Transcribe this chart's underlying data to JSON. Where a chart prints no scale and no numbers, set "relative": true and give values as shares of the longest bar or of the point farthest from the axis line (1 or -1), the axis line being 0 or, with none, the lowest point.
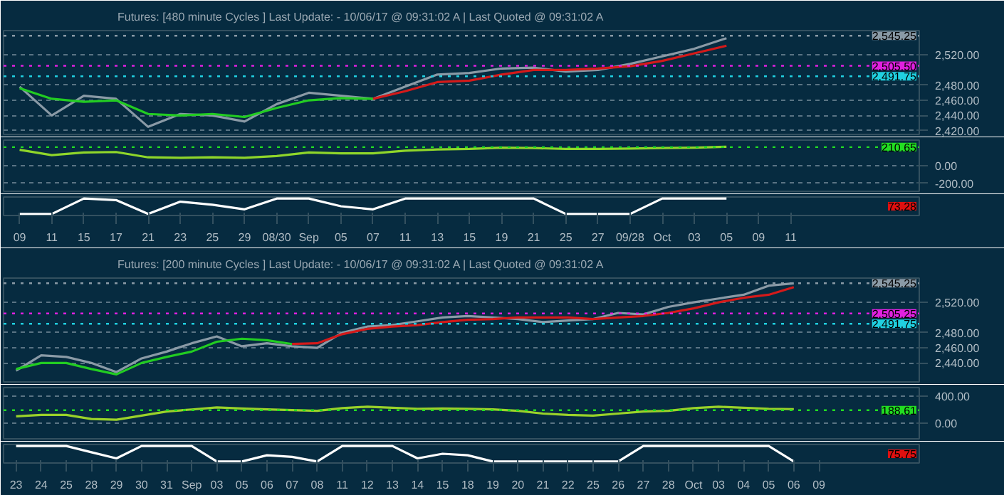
{
  "chart_data": [
    {
      "type": "line",
      "title": "Futures: [480 minute Cycles ] Last Update:  - 10/06/17 @ 09:31:02 A | Last Quoted @ 09:31:02 A",
      "categories": [
        null,
        null,
        null,
        null,
        null,
        null,
        null,
        null,
        null,
        null,
        null,
        null,
        null,
        null,
        null,
        null,
        null,
        null,
        null,
        null,
        null,
        null,
        null,
        null,
        null
      ],
      "series": [
        {
          "color": "#8a9aa6",
          "values": [
            2478,
            2440,
            2466,
            2462,
            2425,
            2442,
            2440,
            2432,
            2455,
            2470,
            2466,
            2462,
            2478,
            2494,
            2496,
            2502,
            2503,
            2498,
            2500,
            2508,
            2518,
            2528,
            2542,
            null,
            null
          ]
        },
        {
          "color": "#22cc22",
          "values": [
            2476,
            2462,
            2458,
            2460,
            2442,
            2440,
            2442,
            2438,
            2450,
            2460,
            2463,
            2462,
            null,
            null,
            null,
            null,
            null,
            null,
            null,
            null,
            null,
            null,
            null,
            null,
            null
          ]
        },
        {
          "color": "#d41a1a",
          "values": [
            null,
            null,
            null,
            null,
            null,
            null,
            null,
            null,
            null,
            null,
            null,
            2462,
            2472,
            2484,
            2486,
            2494,
            2500,
            2500,
            2502,
            2505,
            2512,
            2522,
            2532,
            null,
            null
          ]
        }
      ],
      "ylim": [
        2415,
        2552
      ],
      "yticks": [
        {
          "value": 2420,
          "label": "2,420.00"
        },
        {
          "value": 2440,
          "label": "2,440.00"
        },
        {
          "value": 2460,
          "label": "2,460.00"
        },
        {
          "value": 2480,
          "label": "2,480.00"
        },
        {
          "value": 2520,
          "label": "2,520.00"
        }
      ],
      "ref_lines": [
        {
          "axis": "y",
          "value": 2545.25,
          "label": "2,545.25",
          "color": "#8a9aa6",
          "line_style": "dotted"
        },
        {
          "axis": "y",
          "value": 2505.5,
          "label": "2,505.50",
          "color": "#e020e0",
          "line_style": "dotted"
        },
        {
          "axis": "y",
          "value": 2491.75,
          "label": "2,491.75",
          "color": "#20d0e0",
          "line_style": "dotted"
        }
      ],
      "grid": "y",
      "tick_labels": "y"
    },
    {
      "type": "line",
      "categories": [
        null,
        null,
        null,
        null,
        null,
        null,
        null,
        null,
        null,
        null,
        null,
        null,
        null,
        null,
        null,
        null,
        null,
        null,
        null,
        null,
        null,
        null,
        null,
        null,
        null
      ],
      "series": [
        {
          "color": "#8fd62a",
          "values": [
            180,
            120,
            150,
            155,
            95,
            90,
            95,
            90,
            110,
            150,
            140,
            140,
            170,
            185,
            190,
            205,
            200,
            190,
            190,
            195,
            200,
            205,
            215,
            null,
            null
          ]
        }
      ],
      "ylim": [
        -290,
        290
      ],
      "yticks": [
        {
          "value": 0,
          "label": "0.00"
        },
        {
          "value": -200,
          "label": "-200.00"
        }
      ],
      "ref_lines": [
        {
          "axis": "y",
          "value": 210.65,
          "label": "210.65",
          "color": "#22dd22",
          "line_style": "dotted"
        }
      ],
      "grid": "y",
      "tick_labels": "y"
    },
    {
      "type": "line",
      "relative": true,
      "categories": [
        "09",
        "11",
        "15",
        "17",
        "21",
        "23",
        "25",
        "29",
        "08/30",
        "Sep",
        "05",
        "07",
        "11",
        "13",
        "15",
        "19",
        "21",
        "25",
        "27",
        "09/28",
        "Oct",
        "03",
        "05",
        "09",
        "11"
      ],
      "series": [
        {
          "color": "#ffffff",
          "values": [
            0,
            0,
            1,
            0.9,
            0,
            0.8,
            0.6,
            0.3,
            1,
            1,
            0.5,
            0.3,
            1,
            1,
            1,
            1,
            1,
            0,
            0,
            0,
            1,
            1,
            1,
            null,
            null
          ]
        }
      ],
      "annotations": [
        "73.28"
      ],
      "tick_labels": "x"
    },
    {
      "type": "line",
      "title": "Futures: [200 minute Cycles ] Last Update:  - 10/06/17 @ 09:31:02 A | Last Quoted @ 09:31:02 A",
      "categories": [
        null,
        null,
        null,
        null,
        null,
        null,
        null,
        null,
        null,
        null,
        null,
        null,
        null,
        null,
        null,
        null,
        null,
        null,
        null,
        null,
        null,
        null,
        null,
        null,
        null,
        null,
        null,
        null,
        null,
        null,
        null,
        null,
        null
      ],
      "series": [
        {
          "color": "#8a9aa6",
          "values": [
            2430,
            2450,
            2448,
            2440,
            2428,
            2446,
            2455,
            2466,
            2475,
            2462,
            2466,
            2462,
            2460,
            2480,
            2488,
            2490,
            2495,
            2500,
            2502,
            2500,
            2498,
            2494,
            2496,
            2498,
            2506,
            2504,
            2514,
            2520,
            2525,
            2530,
            2542,
            2545,
            null
          ]
        },
        {
          "color": "#22cc22",
          "values": [
            2432,
            2440,
            2440,
            2432,
            2425,
            2440,
            2448,
            2455,
            2468,
            2472,
            2470,
            2465,
            null,
            null,
            null,
            null,
            null,
            null,
            null,
            null,
            null,
            null,
            null,
            null,
            null,
            null,
            null,
            null,
            null,
            null,
            null,
            null,
            null
          ]
        },
        {
          "color": "#d41a1a",
          "values": [
            null,
            null,
            null,
            null,
            null,
            null,
            null,
            null,
            null,
            null,
            null,
            2465,
            2466,
            2478,
            2485,
            2488,
            2490,
            2494,
            2497,
            2498,
            2500,
            2500,
            2500,
            2498,
            2500,
            2502,
            2506,
            2512,
            2520,
            2526,
            2530,
            2540,
            null
          ]
        }
      ],
      "ylim": [
        2415,
        2552
      ],
      "yticks": [
        {
          "value": 2440,
          "label": "2,440.00"
        },
        {
          "value": 2460,
          "label": "2,460.00"
        },
        {
          "value": 2480,
          "label": "2,480.00"
        },
        {
          "value": 2520,
          "label": "2,520.00"
        }
      ],
      "ref_lines": [
        {
          "axis": "y",
          "value": 2545.25,
          "label": "2,545.25",
          "color": "#8a9aa6",
          "line_style": "dotted"
        },
        {
          "axis": "y",
          "value": 2505.25,
          "label": "2,505.25",
          "color": "#e020e0",
          "line_style": "dotted"
        },
        {
          "axis": "y",
          "value": 2491.75,
          "label": "2,491.75",
          "color": "#20d0e0",
          "line_style": "dotted"
        }
      ],
      "grid": "y",
      "tick_labels": "y"
    },
    {
      "type": "line",
      "categories": [
        null,
        null,
        null,
        null,
        null,
        null,
        null,
        null,
        null,
        null,
        null,
        null,
        null,
        null,
        null,
        null,
        null,
        null,
        null,
        null,
        null,
        null,
        null,
        null,
        null,
        null,
        null,
        null,
        null,
        null,
        null,
        null,
        null
      ],
      "series": [
        {
          "color": "#9ad22a",
          "values": [
            100,
            120,
            120,
            60,
            50,
            110,
            170,
            200,
            230,
            215,
            200,
            190,
            180,
            220,
            240,
            225,
            210,
            215,
            210,
            200,
            180,
            140,
            120,
            110,
            140,
            170,
            180,
            220,
            240,
            225,
            210,
            205,
            null
          ]
        }
      ],
      "ylim": [
        -230,
        520
      ],
      "yticks": [
        {
          "value": 400,
          "label": "400.00"
        },
        {
          "value": 0,
          "label": "0.00"
        }
      ],
      "ref_lines": [
        {
          "axis": "y",
          "value": 188.61,
          "label": "188.61",
          "color": "#22dd22",
          "line_style": "dotted"
        }
      ],
      "grid": "y",
      "tick_labels": "y"
    },
    {
      "type": "line",
      "relative": true,
      "categories": [
        "23",
        "24",
        "25",
        "28",
        "29",
        "30",
        "31",
        "Sep",
        "03",
        "05",
        "06",
        "07",
        "08",
        "11",
        "12",
        "13",
        "14",
        "15",
        "18",
        "19",
        "20",
        "21",
        "22",
        "25",
        "26",
        "27",
        "28",
        "Oct",
        "03",
        "04",
        "05",
        "06",
        "09"
      ],
      "series": [
        {
          "color": "#ffffff",
          "values": [
            1,
            1,
            1,
            0.6,
            0.2,
            1,
            1,
            1,
            0,
            0,
            0.4,
            0.3,
            0,
            1,
            1,
            1,
            0.2,
            0.5,
            0.4,
            0,
            0,
            0,
            0,
            0,
            0,
            1,
            1,
            1,
            1,
            1,
            1,
            0,
            null
          ]
        }
      ],
      "annotations": [
        "75.75"
      ],
      "tick_labels": "x"
    }
  ]
}
